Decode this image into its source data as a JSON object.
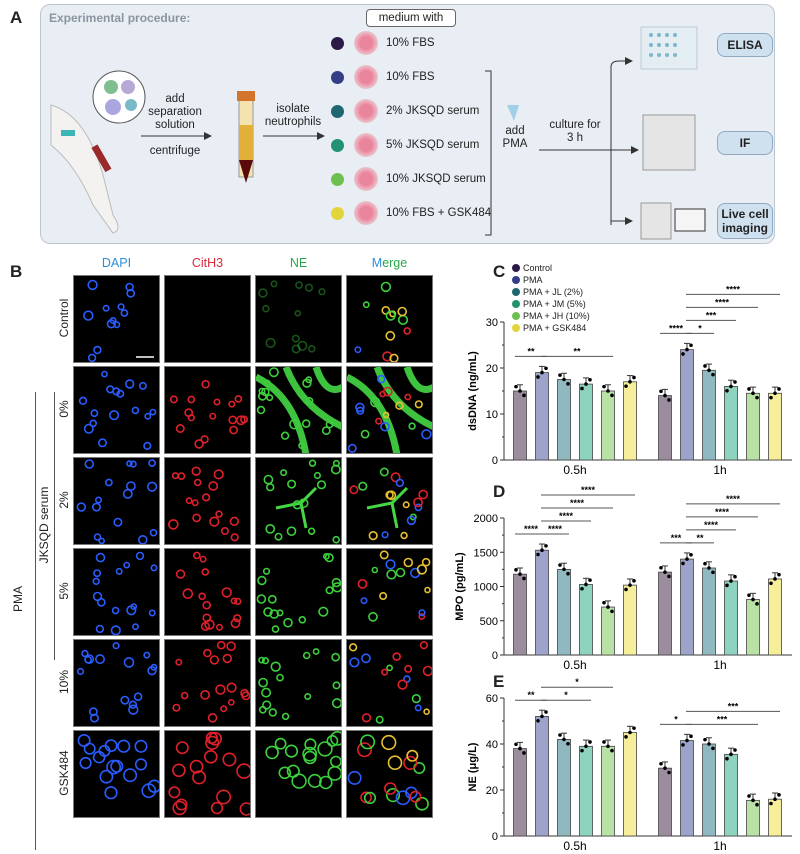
{
  "panel_labels": {
    "a": "A",
    "b": "B",
    "c": "C",
    "d": "D",
    "e": "E"
  },
  "procedure": {
    "title": "Experimental procedure:",
    "medium_header": "medium with",
    "step1_top": "add separation solution",
    "step1_bottom": "centrifuge",
    "step2": "isolate neutrophils",
    "step3": "add PMA",
    "step4": "culture for 3 h",
    "media": [
      {
        "label": "10% FBS",
        "color": "#2b1a45"
      },
      {
        "label": "10% FBS",
        "color": "#343e86"
      },
      {
        "label": "2% JKSQD serum",
        "color": "#1e6670"
      },
      {
        "label": "5% JKSQD serum",
        "color": "#229272"
      },
      {
        "label": "10% JKSQD serum",
        "color": "#6cc04e"
      },
      {
        "label": "10% FBS + GSK484",
        "color": "#e3d43a"
      }
    ],
    "outputs": [
      "ELISA",
      "IF",
      "Live cell imaging"
    ]
  },
  "microscopy": {
    "columns": [
      {
        "label": "DAPI",
        "color": "#2a8fd8"
      },
      {
        "label": "CitH3",
        "color": "#d8283a"
      },
      {
        "label": "NE",
        "color": "#2aa64a"
      },
      {
        "label": "Merge"
      }
    ],
    "rows": [
      "Control",
      "0%",
      "2%",
      "5%",
      "10%",
      "GSK484"
    ],
    "group_label": "JKSQD serum",
    "outer_label": "PMA"
  },
  "legend": [
    {
      "name": "Control",
      "color": "#2b1a45"
    },
    {
      "name": "PMA",
      "color": "#343e86"
    },
    {
      "name": "PMA + JL (2%)",
      "color": "#1e6670"
    },
    {
      "name": "PMA + JM (5%)",
      "color": "#229272"
    },
    {
      "name": "PMA + JH (10%)",
      "color": "#6cc04e"
    },
    {
      "name": "PMA + GSK484",
      "color": "#e3d43a"
    }
  ],
  "bar_fill_colors": [
    "#9b8c9e",
    "#9ea3cb",
    "#8fb8c0",
    "#8dd3bf",
    "#b9e0a5",
    "#f6ee9a"
  ],
  "chart_data": [
    {
      "type": "bar",
      "panel": "C",
      "ylabel": "dsDNA (ng/mL)",
      "ylim": [
        0,
        30
      ],
      "yticks": [
        0,
        10,
        20,
        30
      ],
      "categories": [
        "0.5h",
        "1h"
      ],
      "series": [
        {
          "name": "Control",
          "values": [
            15,
            14
          ]
        },
        {
          "name": "PMA",
          "values": [
            19,
            24
          ]
        },
        {
          "name": "PMA + JL (2%)",
          "values": [
            17.5,
            19.5
          ]
        },
        {
          "name": "PMA + JM (5%)",
          "values": [
            16.5,
            16
          ]
        },
        {
          "name": "PMA + JH (10%)",
          "values": [
            15,
            14.5
          ]
        },
        {
          "name": "PMA + GSK484",
          "values": [
            17,
            14.5
          ]
        }
      ],
      "significance": [
        [
          [
            0,
            1,
            "**"
          ],
          [
            1,
            4,
            "**"
          ]
        ],
        [
          [
            0,
            1,
            "****"
          ],
          [
            1,
            2,
            "*"
          ],
          [
            1,
            3,
            "***"
          ],
          [
            1,
            4,
            "****"
          ],
          [
            1,
            5,
            "****"
          ]
        ]
      ]
    },
    {
      "type": "bar",
      "panel": "D",
      "ylabel": "MPO (pg/mL)",
      "ylim": [
        0,
        2000
      ],
      "yticks": [
        0,
        500,
        1000,
        1500,
        2000
      ],
      "categories": [
        "0.5h",
        "1h"
      ],
      "series": [
        {
          "name": "Control",
          "values": [
            1180,
            1210
          ]
        },
        {
          "name": "PMA",
          "values": [
            1530,
            1400
          ]
        },
        {
          "name": "PMA + JL (2%)",
          "values": [
            1250,
            1270
          ]
        },
        {
          "name": "PMA + JM (5%)",
          "values": [
            1030,
            1080
          ]
        },
        {
          "name": "PMA + JH (10%)",
          "values": [
            700,
            810
          ]
        },
        {
          "name": "PMA + GSK484",
          "values": [
            1020,
            1110
          ]
        }
      ],
      "significance": [
        [
          [
            0,
            1,
            "****"
          ],
          [
            1,
            2,
            "****"
          ],
          [
            1,
            3,
            "****"
          ],
          [
            1,
            4,
            "****"
          ],
          [
            1,
            5,
            "****"
          ]
        ],
        [
          [
            0,
            1,
            "***"
          ],
          [
            1,
            2,
            "**"
          ],
          [
            1,
            3,
            "****"
          ],
          [
            1,
            4,
            "****"
          ],
          [
            1,
            5,
            "****"
          ]
        ]
      ]
    },
    {
      "type": "bar",
      "panel": "E",
      "ylabel": "NE (μg/L)",
      "ylim": [
        0,
        60
      ],
      "yticks": [
        0,
        20,
        40,
        60
      ],
      "categories": [
        "0.5h",
        "1h"
      ],
      "series": [
        {
          "name": "Control",
          "values": [
            38,
            29.5
          ]
        },
        {
          "name": "PMA",
          "values": [
            52,
            41.5
          ]
        },
        {
          "name": "PMA + JL (2%)",
          "values": [
            42,
            40
          ]
        },
        {
          "name": "PMA + JM (5%)",
          "values": [
            39,
            35.5
          ]
        },
        {
          "name": "PMA + JH (10%)",
          "values": [
            39,
            15.5
          ]
        },
        {
          "name": "PMA + GSK484",
          "values": [
            45,
            16
          ]
        }
      ],
      "significance": [
        [
          [
            0,
            1,
            "**"
          ],
          [
            1,
            3,
            "*"
          ],
          [
            1,
            4,
            "*"
          ]
        ],
        [
          [
            0,
            1,
            "*"
          ],
          [
            1,
            4,
            "***"
          ],
          [
            1,
            5,
            "***"
          ]
        ]
      ]
    }
  ]
}
